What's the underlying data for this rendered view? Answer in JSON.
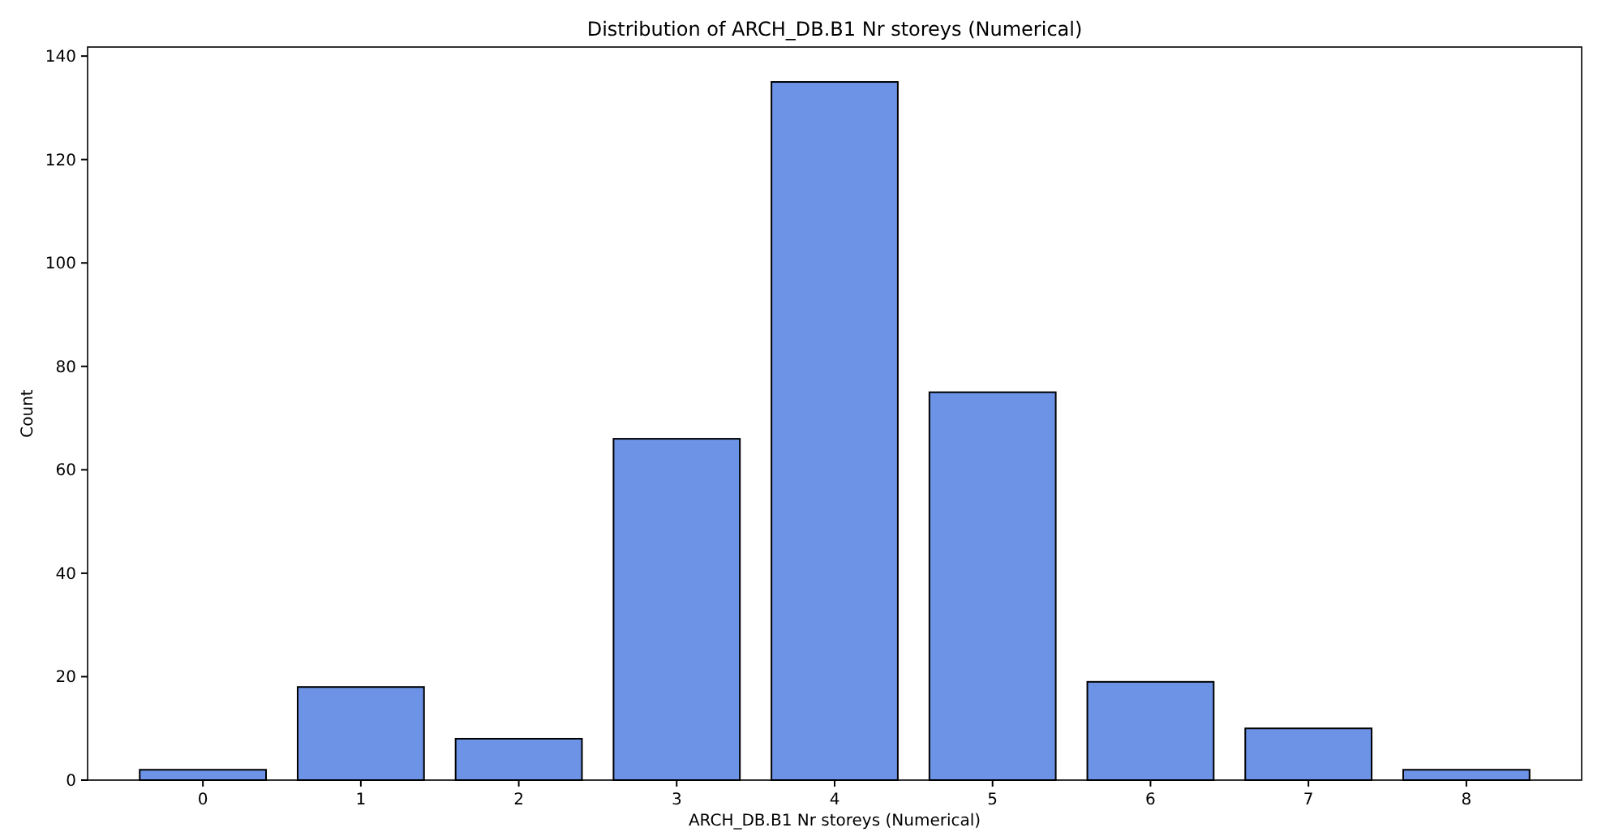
{
  "chart_data": {
    "type": "bar",
    "title": "Distribution of ARCH_DB.B1 Nr storeys (Numerical)",
    "xlabel": "ARCH_DB.B1 Nr storeys (Numerical)",
    "ylabel": "Count",
    "categories": [
      "0",
      "1",
      "2",
      "3",
      "4",
      "5",
      "6",
      "7",
      "8"
    ],
    "values": [
      2,
      18,
      8,
      66,
      135,
      75,
      19,
      10,
      2
    ],
    "color": "#6d93e6",
    "ylim": [
      0,
      141.75
    ],
    "yticks": [
      0,
      20,
      40,
      60,
      80,
      100,
      120,
      140
    ],
    "grid": false
  }
}
